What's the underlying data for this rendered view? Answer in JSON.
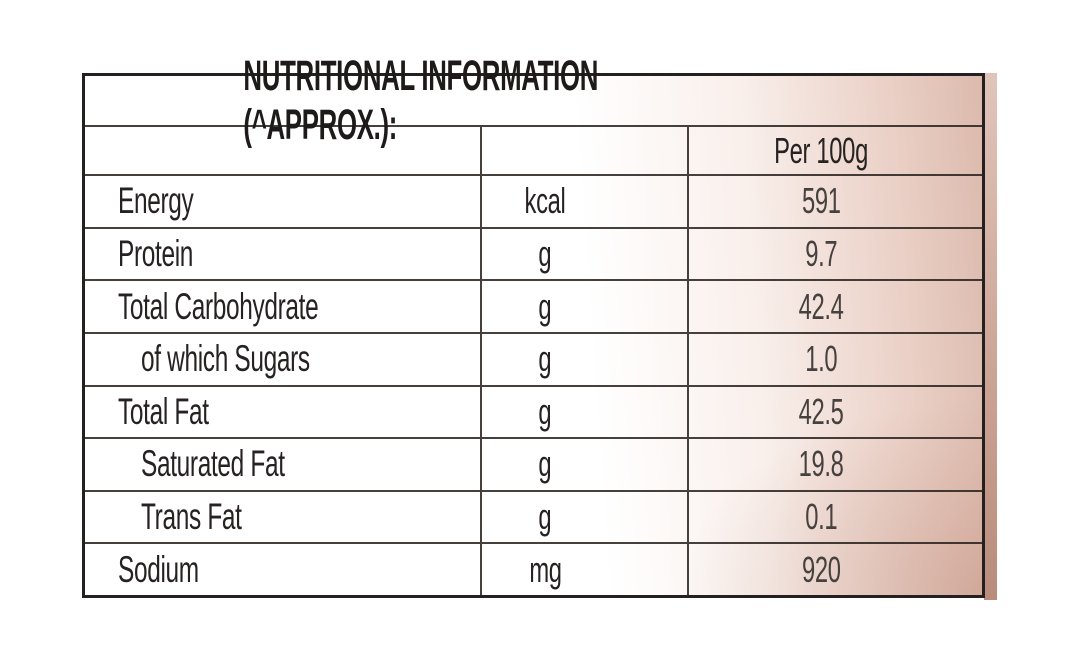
{
  "table": {
    "title": "NUTRITIONAL INFORMATION (^APPROX.):",
    "column_header": "Per 100g",
    "rows": [
      {
        "label": "Energy",
        "unit": "kcal",
        "value": "591",
        "indent": false
      },
      {
        "label": "Protein",
        "unit": "g",
        "value": "9.7",
        "indent": false
      },
      {
        "label": "Total Carbohydrate",
        "unit": "g",
        "value": "42.4",
        "indent": false
      },
      {
        "label": "of which Sugars",
        "unit": "g",
        "value": "1.0",
        "indent": true
      },
      {
        "label": "Total Fat",
        "unit": "g",
        "value": "42.5",
        "indent": false
      },
      {
        "label": "Saturated Fat",
        "unit": "g",
        "value": "19.8",
        "indent": true
      },
      {
        "label": "Trans Fat",
        "unit": "g",
        "value": "0.1",
        "indent": true
      },
      {
        "label": "Sodium",
        "unit": "mg",
        "value": "920",
        "indent": false
      }
    ]
  },
  "colors": {
    "background": "#ffffff",
    "text": "#262222",
    "value_text": "#46413f",
    "grid_line": "#35302e",
    "outer_border": "#242020",
    "package_pink": "#dcbaad",
    "package_edge": "#c39a8b"
  }
}
